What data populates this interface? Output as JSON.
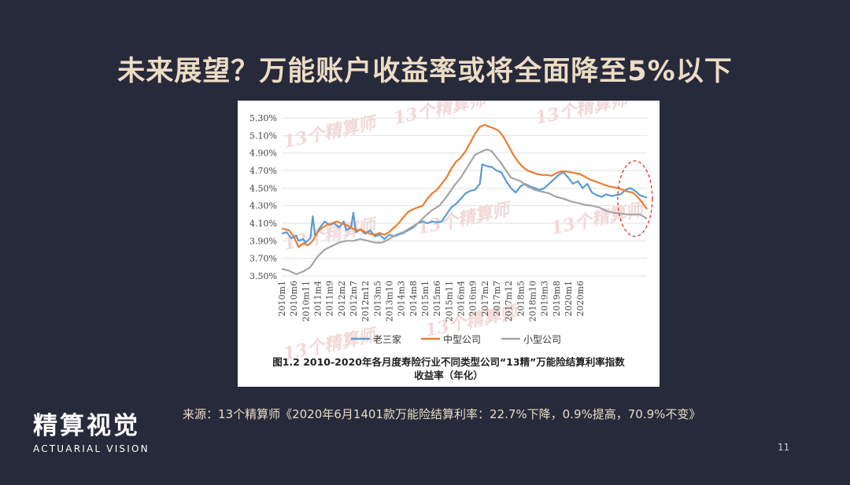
{
  "slide": {
    "title": "未来展望？万能账户收益率或将全面降至5%以下",
    "source": "来源：13个精算师《2020年6月1401款万能险结算利率：22.7%下降，0.9%提高，70.9%不变》",
    "page_number": "11"
  },
  "logo": {
    "cn": "精算视觉",
    "en": "ACTUARIAL VISION"
  },
  "watermark": "13个精算师",
  "colors": {
    "background": "#272a3a",
    "title": "#ecdcc4",
    "big3": "#5b9bd5",
    "mid": "#ed7d31",
    "small": "#a5a5a5",
    "highlight": "#e03030"
  },
  "chart_data": {
    "type": "line",
    "caption": "图1.2 2010-2020年各月度寿险行业不同类型公司“13精”万能险结算利率指数收益率（年化）",
    "caption_line1": "图1.2 2010-2020年各月度寿险行业不同类型公司“13精”万能险结算利率指数",
    "caption_line2": "收益率（年化）",
    "y_ticks": [
      "5.30%",
      "5.10%",
      "4.90%",
      "4.70%",
      "4.50%",
      "4.30%",
      "4.10%",
      "3.90%",
      "3.70%",
      "3.50%"
    ],
    "ylim": [
      3.5,
      5.3
    ],
    "x_tick_labels": [
      "2010m1",
      "2010m6",
      "2010m11",
      "2011m4",
      "2011m9",
      "2012m2",
      "2012m7",
      "2012m12",
      "2013m5",
      "2013m10",
      "2014m3",
      "2014m8",
      "2015m1",
      "2015m6",
      "2015m11",
      "2016m4",
      "2016m9",
      "2017m2",
      "2017m7",
      "2017m12",
      "2018m5",
      "2018m10",
      "2019m3",
      "2019m8",
      "2020m1",
      "2020m6"
    ],
    "x_month_range": [
      "2010m1",
      "2020m6"
    ],
    "legend_position": "bottom",
    "series": [
      {
        "name": "老三家",
        "points": [
          [
            0,
            3.98
          ],
          [
            2,
            4.0
          ],
          [
            4,
            3.93
          ],
          [
            6,
            3.96
          ],
          [
            7,
            3.9
          ],
          [
            9,
            3.92
          ],
          [
            10,
            3.88
          ],
          [
            12,
            3.93
          ],
          [
            13,
            4.18
          ],
          [
            14,
            3.95
          ],
          [
            16,
            4.05
          ],
          [
            18,
            4.12
          ],
          [
            20,
            4.08
          ],
          [
            22,
            4.1
          ],
          [
            24,
            4.05
          ],
          [
            26,
            4.12
          ],
          [
            27,
            4.02
          ],
          [
            29,
            4.05
          ],
          [
            30,
            4.22
          ],
          [
            31,
            4.0
          ],
          [
            33,
            4.03
          ],
          [
            35,
            3.98
          ],
          [
            37,
            4.02
          ],
          [
            39,
            3.95
          ],
          [
            41,
            3.97
          ],
          [
            43,
            3.92
          ],
          [
            45,
            3.97
          ],
          [
            47,
            3.95
          ],
          [
            49,
            3.97
          ],
          [
            51,
            3.99
          ],
          [
            53,
            4.02
          ],
          [
            55,
            4.05
          ],
          [
            57,
            4.1
          ],
          [
            59,
            4.12
          ],
          [
            61,
            4.1
          ],
          [
            63,
            4.12
          ],
          [
            65,
            4.11
          ],
          [
            67,
            4.12
          ],
          [
            69,
            4.2
          ],
          [
            71,
            4.28
          ],
          [
            73,
            4.32
          ],
          [
            75,
            4.38
          ],
          [
            77,
            4.44
          ],
          [
            79,
            4.47
          ],
          [
            81,
            4.48
          ],
          [
            83,
            4.55
          ],
          [
            84,
            4.77
          ],
          [
            86,
            4.75
          ],
          [
            88,
            4.74
          ],
          [
            90,
            4.7
          ],
          [
            92,
            4.68
          ],
          [
            94,
            4.58
          ],
          [
            96,
            4.5
          ],
          [
            98,
            4.45
          ],
          [
            100,
            4.52
          ],
          [
            102,
            4.55
          ],
          [
            104,
            4.52
          ],
          [
            106,
            4.5
          ],
          [
            108,
            4.48
          ],
          [
            110,
            4.5
          ],
          [
            112,
            4.55
          ],
          [
            114,
            4.6
          ],
          [
            116,
            4.65
          ],
          [
            118,
            4.68
          ],
          [
            120,
            4.62
          ],
          [
            122,
            4.55
          ],
          [
            124,
            4.58
          ],
          [
            126,
            4.5
          ],
          [
            128,
            4.55
          ],
          [
            130,
            4.45
          ],
          [
            132,
            4.42
          ],
          [
            134,
            4.4
          ],
          [
            136,
            4.43
          ],
          [
            138,
            4.41
          ],
          [
            140,
            4.42
          ],
          [
            142,
            4.43
          ],
          [
            144,
            4.48
          ],
          [
            146,
            4.5
          ],
          [
            148,
            4.47
          ],
          [
            150,
            4.42
          ],
          [
            152,
            4.4
          ],
          [
            153,
            4.39
          ]
        ]
      },
      {
        "name": "中型公司",
        "points": [
          [
            0,
            4.04
          ],
          [
            3,
            4.02
          ],
          [
            5,
            3.95
          ],
          [
            7,
            3.83
          ],
          [
            9,
            3.87
          ],
          [
            11,
            3.85
          ],
          [
            13,
            3.9
          ],
          [
            15,
            4.0
          ],
          [
            17,
            4.05
          ],
          [
            19,
            4.08
          ],
          [
            21,
            4.1
          ],
          [
            23,
            4.12
          ],
          [
            25,
            4.1
          ],
          [
            27,
            4.08
          ],
          [
            29,
            4.05
          ],
          [
            31,
            4.02
          ],
          [
            33,
            4.03
          ],
          [
            35,
            4.0
          ],
          [
            37,
            3.98
          ],
          [
            39,
            3.97
          ],
          [
            41,
            3.99
          ],
          [
            43,
            3.97
          ],
          [
            45,
            4.0
          ],
          [
            47,
            4.05
          ],
          [
            49,
            4.1
          ],
          [
            51,
            4.17
          ],
          [
            53,
            4.23
          ],
          [
            55,
            4.26
          ],
          [
            57,
            4.28
          ],
          [
            59,
            4.3
          ],
          [
            61,
            4.38
          ],
          [
            63,
            4.44
          ],
          [
            65,
            4.48
          ],
          [
            67,
            4.55
          ],
          [
            69,
            4.62
          ],
          [
            71,
            4.72
          ],
          [
            73,
            4.8
          ],
          [
            75,
            4.85
          ],
          [
            77,
            4.92
          ],
          [
            79,
            5.02
          ],
          [
            81,
            5.12
          ],
          [
            83,
            5.2
          ],
          [
            85,
            5.22
          ],
          [
            87,
            5.2
          ],
          [
            89,
            5.18
          ],
          [
            91,
            5.15
          ],
          [
            93,
            5.08
          ],
          [
            95,
            4.98
          ],
          [
            97,
            4.88
          ],
          [
            99,
            4.8
          ],
          [
            101,
            4.74
          ],
          [
            103,
            4.7
          ],
          [
            105,
            4.68
          ],
          [
            107,
            4.66
          ],
          [
            109,
            4.65
          ],
          [
            111,
            4.65
          ],
          [
            113,
            4.64
          ],
          [
            115,
            4.67
          ],
          [
            117,
            4.69
          ],
          [
            119,
            4.69
          ],
          [
            121,
            4.68
          ],
          [
            123,
            4.67
          ],
          [
            125,
            4.66
          ],
          [
            127,
            4.63
          ],
          [
            129,
            4.6
          ],
          [
            131,
            4.58
          ],
          [
            133,
            4.56
          ],
          [
            135,
            4.54
          ],
          [
            137,
            4.52
          ],
          [
            139,
            4.51
          ],
          [
            141,
            4.5
          ],
          [
            143,
            4.48
          ],
          [
            145,
            4.46
          ],
          [
            147,
            4.45
          ],
          [
            149,
            4.4
          ],
          [
            151,
            4.34
          ],
          [
            153,
            4.26
          ]
        ]
      },
      {
        "name": "小型公司",
        "points": [
          [
            0,
            3.58
          ],
          [
            3,
            3.56
          ],
          [
            6,
            3.52
          ],
          [
            9,
            3.55
          ],
          [
            12,
            3.6
          ],
          [
            15,
            3.72
          ],
          [
            18,
            3.8
          ],
          [
            21,
            3.84
          ],
          [
            24,
            3.88
          ],
          [
            27,
            3.9
          ],
          [
            30,
            3.9
          ],
          [
            33,
            3.92
          ],
          [
            36,
            3.9
          ],
          [
            39,
            3.88
          ],
          [
            42,
            3.88
          ],
          [
            45,
            3.92
          ],
          [
            48,
            3.97
          ],
          [
            51,
            4.0
          ],
          [
            54,
            4.05
          ],
          [
            57,
            4.1
          ],
          [
            60,
            4.18
          ],
          [
            63,
            4.25
          ],
          [
            66,
            4.3
          ],
          [
            69,
            4.4
          ],
          [
            72,
            4.52
          ],
          [
            75,
            4.62
          ],
          [
            78,
            4.75
          ],
          [
            81,
            4.88
          ],
          [
            84,
            4.92
          ],
          [
            86,
            4.94
          ],
          [
            88,
            4.92
          ],
          [
            90,
            4.85
          ],
          [
            92,
            4.78
          ],
          [
            94,
            4.7
          ],
          [
            96,
            4.62
          ],
          [
            98,
            4.6
          ],
          [
            100,
            4.58
          ],
          [
            103,
            4.52
          ],
          [
            106,
            4.48
          ],
          [
            109,
            4.46
          ],
          [
            112,
            4.44
          ],
          [
            115,
            4.4
          ],
          [
            118,
            4.38
          ],
          [
            121,
            4.35
          ],
          [
            124,
            4.33
          ],
          [
            127,
            4.31
          ],
          [
            130,
            4.3
          ],
          [
            133,
            4.28
          ],
          [
            136,
            4.24
          ],
          [
            139,
            4.22
          ],
          [
            142,
            4.21
          ],
          [
            145,
            4.2
          ],
          [
            148,
            4.2
          ],
          [
            150,
            4.2
          ],
          [
            152,
            4.17
          ],
          [
            153,
            4.15
          ]
        ]
      }
    ],
    "annotations": [
      {
        "type": "dashed-ellipse",
        "around": "2020 year-end declines"
      }
    ]
  }
}
